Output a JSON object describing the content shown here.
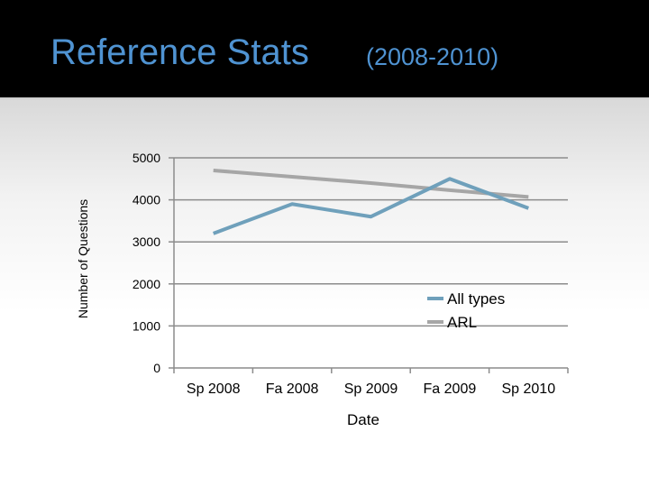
{
  "slide": {
    "title_main": "Reference Stats",
    "title_sub": "(2008-2010)"
  },
  "colors": {
    "background_header": "#000000",
    "title": "#4f93d2",
    "series_all_types": "#6fa0bb",
    "series_arl": "#a6a6a6",
    "gridline": "#8c8c8c"
  },
  "chart_data": {
    "type": "line",
    "title": "",
    "xlabel": "Date",
    "ylabel": "Number of Questions",
    "categories": [
      "Sp 2008",
      "Fa 2008",
      "Sp 2009",
      "Fa 2009",
      "Sp 2010"
    ],
    "ylim": [
      0,
      5000
    ],
    "yticks": [
      0,
      1000,
      2000,
      3000,
      4000,
      5000
    ],
    "grid": true,
    "legend_position": "right",
    "series": [
      {
        "name": "All types",
        "values": [
          3200,
          3900,
          3600,
          4500,
          3800
        ]
      },
      {
        "name": "ARL",
        "values": [
          4700,
          4550,
          4400,
          4230,
          4070
        ]
      }
    ]
  }
}
